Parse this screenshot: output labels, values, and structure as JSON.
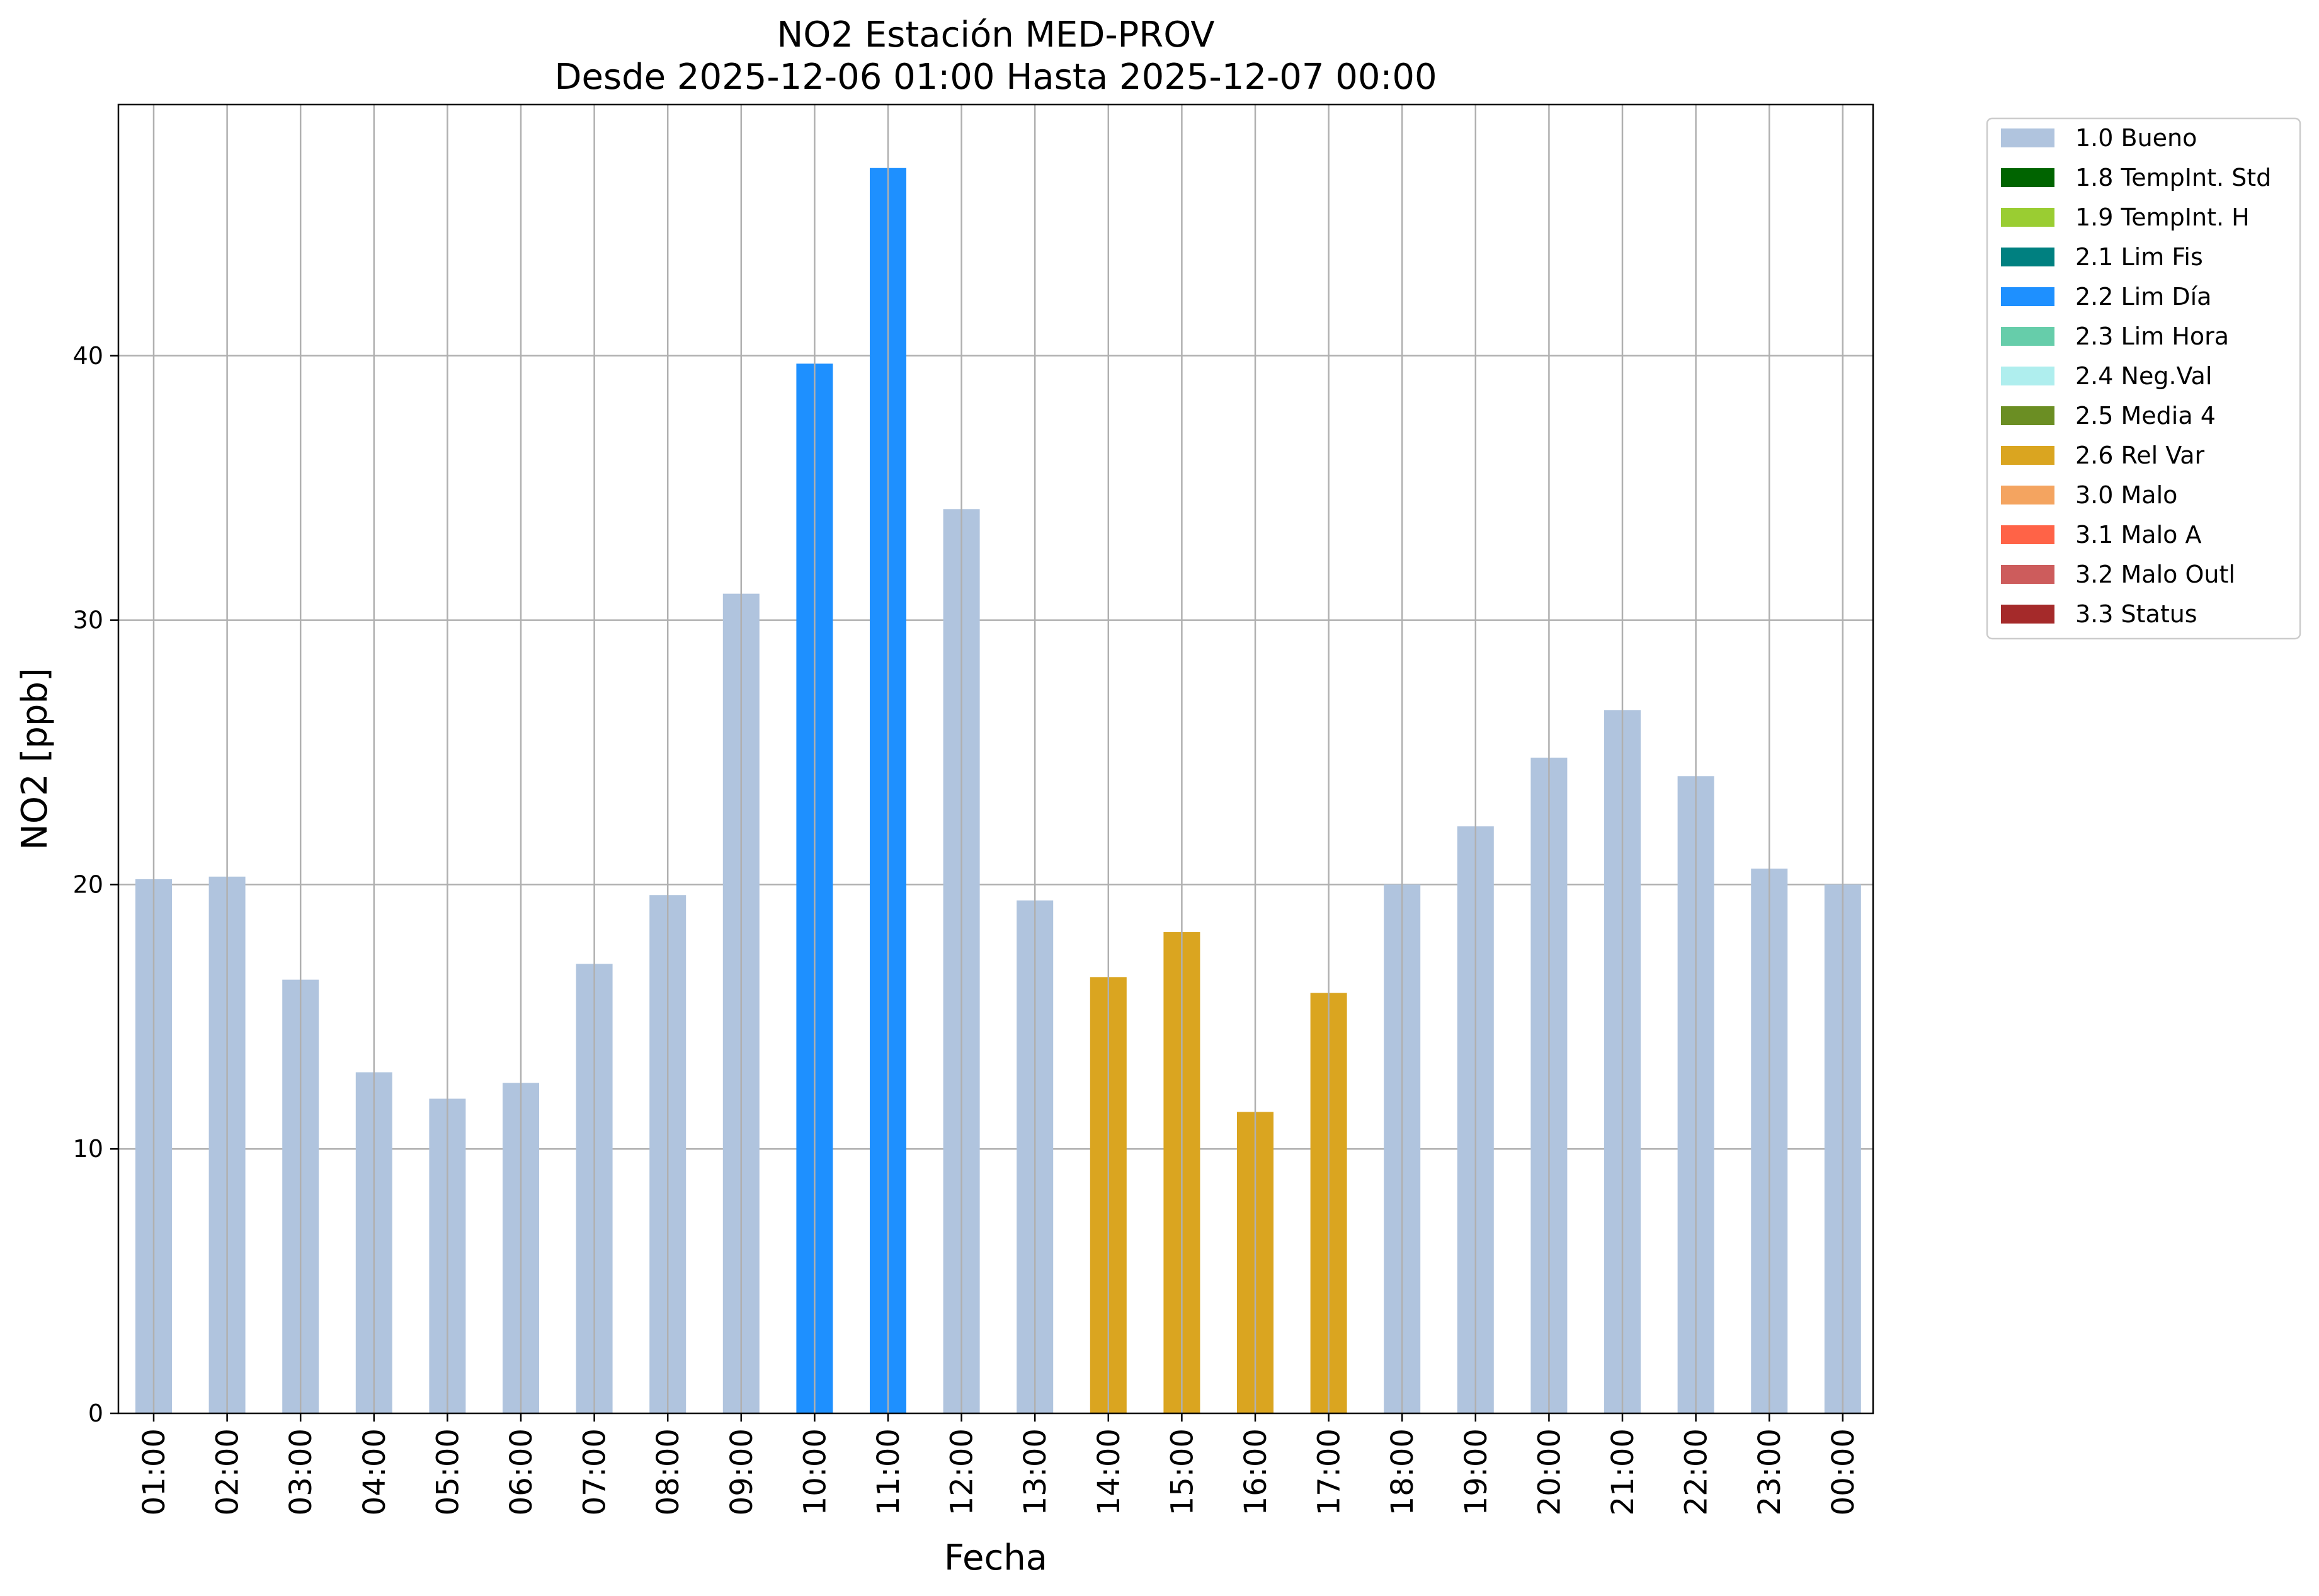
{
  "chart_data": {
    "type": "bar",
    "title_line1": "NO2 Estación MED-PROV",
    "title_line2": "Desde 2025-12-06 01:00 Hasta 2025-12-07 00:00",
    "xlabel": "Fecha",
    "ylabel": "NO2 [ppb]",
    "ylim": [
      0,
      49.5
    ],
    "yticks": [
      0,
      10,
      20,
      30,
      40
    ],
    "grid": true,
    "legend_position": "outside-top-right",
    "categories": [
      "01:00",
      "02:00",
      "03:00",
      "04:00",
      "05:00",
      "06:00",
      "07:00",
      "08:00",
      "09:00",
      "10:00",
      "11:00",
      "12:00",
      "13:00",
      "14:00",
      "15:00",
      "16:00",
      "17:00",
      "18:00",
      "19:00",
      "20:00",
      "21:00",
      "22:00",
      "23:00",
      "00:00"
    ],
    "values": [
      20.2,
      20.3,
      16.4,
      12.9,
      11.9,
      12.5,
      17.0,
      19.6,
      31.0,
      39.7,
      47.1,
      34.2,
      19.4,
      16.5,
      18.2,
      11.4,
      15.9,
      20.0,
      22.2,
      24.8,
      26.6,
      24.1,
      20.6,
      20.0
    ],
    "flags": [
      "1.0 Bueno",
      "1.0 Bueno",
      "1.0 Bueno",
      "1.0 Bueno",
      "1.0 Bueno",
      "1.0 Bueno",
      "1.0 Bueno",
      "1.0 Bueno",
      "1.0 Bueno",
      "2.2 Lim Día",
      "2.2 Lim Día",
      "1.0 Bueno",
      "1.0 Bueno",
      "2.6 Rel Var",
      "2.6 Rel Var",
      "2.6 Rel Var",
      "2.6 Rel Var",
      "1.0 Bueno",
      "1.0 Bueno",
      "1.0 Bueno",
      "1.0 Bueno",
      "1.0 Bueno",
      "1.0 Bueno",
      "1.0 Bueno"
    ],
    "legend": [
      {
        "label": "1.0 Bueno",
        "color": "#b0c4de"
      },
      {
        "label": "1.8 TempInt. Std",
        "color": "#006400"
      },
      {
        "label": "1.9 TempInt. H",
        "color": "#9acd32"
      },
      {
        "label": "2.1 Lim Fis",
        "color": "#008080"
      },
      {
        "label": "2.2 Lim Día",
        "color": "#1e90ff"
      },
      {
        "label": "2.3 Lim Hora",
        "color": "#66cdaa"
      },
      {
        "label": "2.4 Neg.Val",
        "color": "#afeeee"
      },
      {
        "label": "2.5 Media 4",
        "color": "#6b8e23"
      },
      {
        "label": "2.6 Rel Var",
        "color": "#daa520"
      },
      {
        "label": "3.0 Malo",
        "color": "#f4a460"
      },
      {
        "label": "3.1 Malo A",
        "color": "#ff6347"
      },
      {
        "label": "3.2 Malo Outl",
        "color": "#cd5c5c"
      },
      {
        "label": "3.3 Status",
        "color": "#a52a2a"
      }
    ]
  }
}
